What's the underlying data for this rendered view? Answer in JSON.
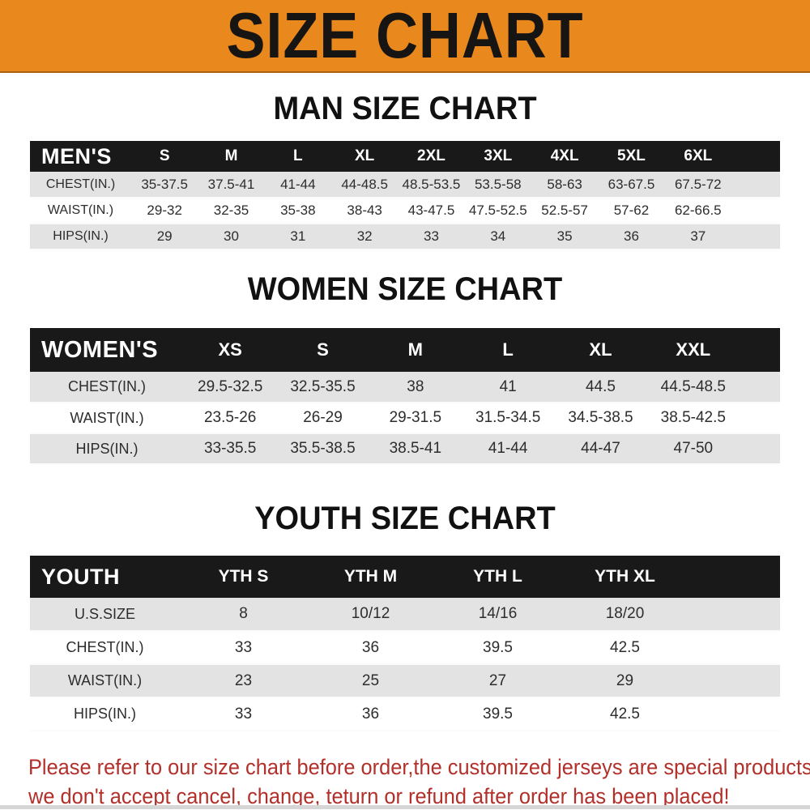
{
  "banner": {
    "title": "SIZE CHART",
    "bg_color": "#e9881c",
    "text_color": "#171513"
  },
  "sections": [
    {
      "heading": "MAN SIZE CHART",
      "table": {
        "title": "MEN'S",
        "header": [
          "MEN'S",
          "S",
          "M",
          "L",
          "XL",
          "2XL",
          "3XL",
          "4XL",
          "5XL",
          "6XL"
        ],
        "rows": [
          [
            "CHEST(IN.)",
            "35-37.5",
            "37.5-41",
            "41-44",
            "44-48.5",
            "48.5-53.5",
            "53.5-58",
            "58-63",
            "63-67.5",
            "67.5-72"
          ],
          [
            "WAIST(IN.)",
            "29-32",
            "32-35",
            "35-38",
            "38-43",
            "43-47.5",
            "47.5-52.5",
            "52.5-57",
            "57-62",
            "62-66.5"
          ],
          [
            "HIPS(IN.)",
            "29",
            "30",
            "31",
            "32",
            "33",
            "34",
            "35",
            "36",
            "37"
          ]
        ]
      }
    },
    {
      "heading": "WOMEN SIZE CHART",
      "table": {
        "title": "WOMEN'S",
        "header": [
          "WOMEN'S",
          "XS",
          "S",
          "M",
          "L",
          "XL",
          "XXL"
        ],
        "rows": [
          [
            "CHEST(IN.)",
            "29.5-32.5",
            "32.5-35.5",
            "38",
            "41",
            "44.5",
            "44.5-48.5"
          ],
          [
            "WAIST(IN.)",
            "23.5-26",
            "26-29",
            "29-31.5",
            "31.5-34.5",
            "34.5-38.5",
            "38.5-42.5"
          ],
          [
            "HIPS(IN.)",
            "33-35.5",
            "35.5-38.5",
            "38.5-41",
            "41-44",
            "44-47",
            "47-50"
          ]
        ]
      }
    },
    {
      "heading": "YOUTH SIZE CHART",
      "table": {
        "title": "YOUTH",
        "header": [
          "YOUTH",
          "YTH S",
          "YTH M",
          "YTH L",
          "YTH XL"
        ],
        "rows": [
          [
            "U.S.SIZE",
            "8",
            "10/12",
            "14/16",
            "18/20"
          ],
          [
            "CHEST(IN.)",
            "33",
            "36",
            "39.5",
            "42.5"
          ],
          [
            "WAIST(IN.)",
            "23",
            "25",
            "27",
            "29"
          ],
          [
            "HIPS(IN.)",
            "33",
            "36",
            "39.5",
            "42.5"
          ]
        ]
      }
    }
  ],
  "footer_note": {
    "line1": "Please refer to our size chart before order,the customized jerseys are special products,",
    "line2": "we don't accept cancel, change, teturn or refund after order has been placed!",
    "color": "#b22f2a"
  }
}
